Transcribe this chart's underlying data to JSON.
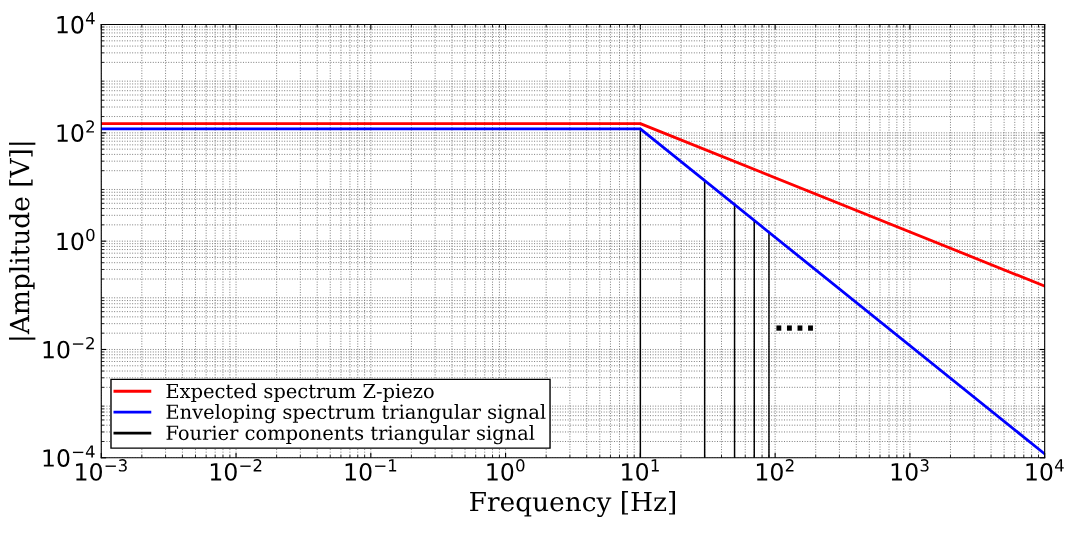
{
  "chart_data": {
    "type": "line",
    "xlabel": "Frequency [Hz]",
    "ylabel": "|Amplitude [V]|",
    "log": "xy",
    "grid": true,
    "legend": "bottom left",
    "xlim": [
      0.001,
      10000
    ],
    "ylim": [
      0.0001,
      10000
    ],
    "xticks": [
      {
        "value": 0.001,
        "label": "10$^{−3}$"
      },
      {
        "value": 0.01,
        "label": "10$^{−2}$"
      },
      {
        "value": 0.1,
        "label": "10$^{−1}$"
      },
      {
        "value": 1,
        "label": "10$^{0}$"
      },
      {
        "value": 10,
        "label": "10$^{1}$"
      },
      {
        "value": 100,
        "label": "10$^{2}$"
      },
      {
        "value": 1000,
        "label": "10$^{3}$"
      },
      {
        "value": 10000,
        "label": "10$^{4}$"
      }
    ],
    "yticks": [
      {
        "value": 0.0001,
        "label": "10$^{−4}$"
      },
      {
        "value": 0.01,
        "label": "10$^{−2}$"
      },
      {
        "value": 1,
        "label": "10$^{0}$"
      },
      {
        "value": 100,
        "label": "10$^{2}$"
      },
      {
        "value": 10000,
        "label": "10$^{4}$"
      }
    ],
    "series": [
      {
        "name": "Expected spectrum Z-piezo",
        "color": "#ff0000",
        "x": [
          0.001,
          10,
          10000
        ],
        "values": [
          148,
          148,
          0.148
        ]
      },
      {
        "name": "Enveloping spectrum triangular signal",
        "color": "#0000ff",
        "x": [
          0.001,
          10,
          10000
        ],
        "values": [
          118,
          118,
          0.000118
        ]
      },
      {
        "name": "Fourier components triangular signal",
        "color": "#000000",
        "type": "bar",
        "x": [
          10,
          30,
          50,
          70,
          90
        ],
        "values": [
          118,
          13.1,
          4.72,
          2.41,
          1.46
        ]
      }
    ],
    "annotations": [
      "...."
    ]
  }
}
